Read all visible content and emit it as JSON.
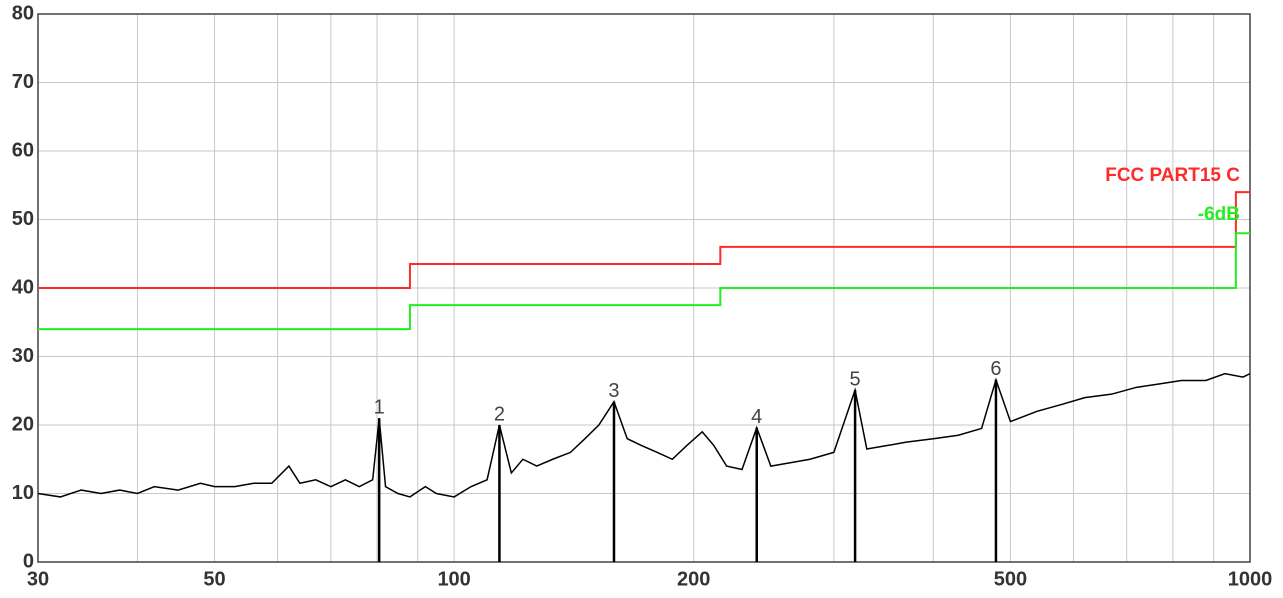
{
  "chart_data": {
    "type": "line",
    "x_scale": "log",
    "xlim": [
      30,
      1000
    ],
    "ylim": [
      0,
      80
    ],
    "xticks": [
      30,
      50,
      100,
      200,
      500,
      1000
    ],
    "xgrid": [
      40,
      60,
      70,
      80,
      90,
      300,
      400,
      600,
      700,
      800,
      900
    ],
    "yticks": [
      0,
      10,
      20,
      30,
      40,
      50,
      60,
      70,
      80
    ],
    "grid": true,
    "series": [
      {
        "name": "FCC PART15 C",
        "color": "#ff2a2a",
        "x": [
          30,
          88,
          88,
          216,
          216,
          960,
          960,
          1000
        ],
        "values": [
          40,
          40,
          43.5,
          43.5,
          46,
          46,
          54,
          54
        ]
      },
      {
        "name": "-6dB",
        "color": "#22ee22",
        "x": [
          30,
          88,
          88,
          216,
          216,
          960,
          960,
          1000
        ],
        "values": [
          34,
          34,
          37.5,
          37.5,
          40,
          40,
          48,
          48
        ]
      },
      {
        "color": "#000000",
        "x": [
          30,
          32,
          34,
          36,
          38,
          40,
          42,
          45,
          48,
          50,
          53,
          56,
          59,
          62,
          64,
          67,
          70,
          73,
          76,
          79,
          80.5,
          82,
          85,
          88,
          92,
          95,
          100,
          105,
          110,
          114,
          118,
          122,
          127,
          133,
          140,
          146,
          152,
          158.8,
          165,
          172,
          180,
          188,
          196,
          205,
          212,
          220,
          230,
          240,
          250,
          265,
          280,
          300,
          319,
          330,
          350,
          370,
          400,
          430,
          460,
          479.5,
          500,
          540,
          580,
          620,
          670,
          720,
          770,
          820,
          880,
          930,
          980,
          1000
        ],
        "values": [
          10,
          9.5,
          10.5,
          10,
          10.5,
          10,
          11,
          10.5,
          11.5,
          11,
          11,
          11.5,
          11.5,
          14,
          11.5,
          12,
          11,
          12,
          11,
          12,
          21,
          11,
          10,
          9.5,
          11,
          10,
          9.5,
          11,
          12,
          20,
          13,
          15,
          14,
          15,
          16,
          18,
          20,
          23.4,
          18,
          17,
          16,
          15,
          17,
          19,
          17,
          14,
          13.5,
          19.6,
          14,
          14.5,
          15,
          16,
          25.1,
          16.5,
          17,
          17.5,
          18,
          18.5,
          19.5,
          26.6,
          20.5,
          22,
          23,
          24,
          24.5,
          25.5,
          26,
          26.5,
          26.5,
          27.5,
          27,
          27.5
        ]
      }
    ],
    "markers": [
      {
        "label": "1",
        "x": 80.5,
        "value": 21
      },
      {
        "label": "2",
        "x": 114,
        "value": 20
      },
      {
        "label": "3",
        "x": 158.8,
        "value": 23.4
      },
      {
        "label": "4",
        "x": 240,
        "value": 19.6
      },
      {
        "label": "5",
        "x": 319,
        "value": 25.1
      },
      {
        "label": "6",
        "x": 479.5,
        "value": 26.6
      }
    ]
  }
}
